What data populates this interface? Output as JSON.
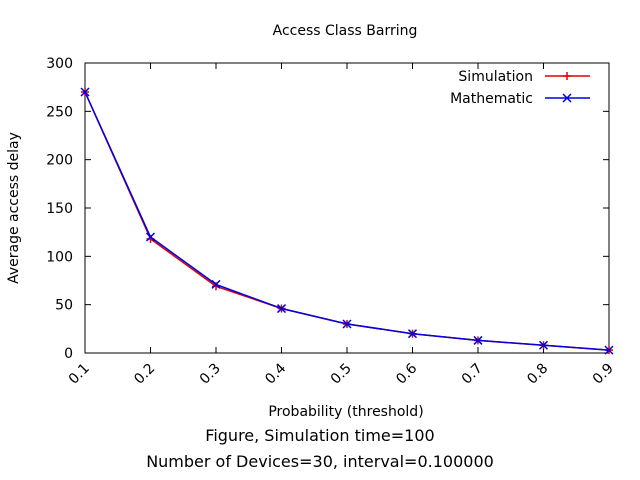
{
  "chart_data": {
    "type": "line",
    "title": "Access Class Barring",
    "xlabel": "Probability (threshold)",
    "ylabel": "Average access delay",
    "x": [
      0.1,
      0.2,
      0.3,
      0.4,
      0.5,
      0.6,
      0.7,
      0.8,
      0.9
    ],
    "xlim": [
      0.1,
      0.9
    ],
    "ylim": [
      0,
      300
    ],
    "x_tick_labels": [
      "0.1",
      "0.2",
      "0.3",
      "0.4",
      "0.5",
      "0.6",
      "0.7",
      "0.8",
      "0.9"
    ],
    "y_ticks": [
      0,
      50,
      100,
      150,
      200,
      250,
      300
    ],
    "legend_position": "top-right",
    "grid": false,
    "series": [
      {
        "name": "Simulation",
        "color": "#e00000",
        "marker": "plus",
        "values": [
          270,
          118,
          69,
          46,
          30,
          20,
          13,
          8,
          3
        ]
      },
      {
        "name": "Mathematic",
        "color": "#0000e0",
        "marker": "cross",
        "values": [
          270,
          120,
          71,
          46,
          30,
          20,
          13,
          8,
          3
        ]
      }
    ]
  },
  "captions": {
    "line1": "Figure, Simulation time=100",
    "line2": "Number of Devices=30, interval=0.100000"
  }
}
